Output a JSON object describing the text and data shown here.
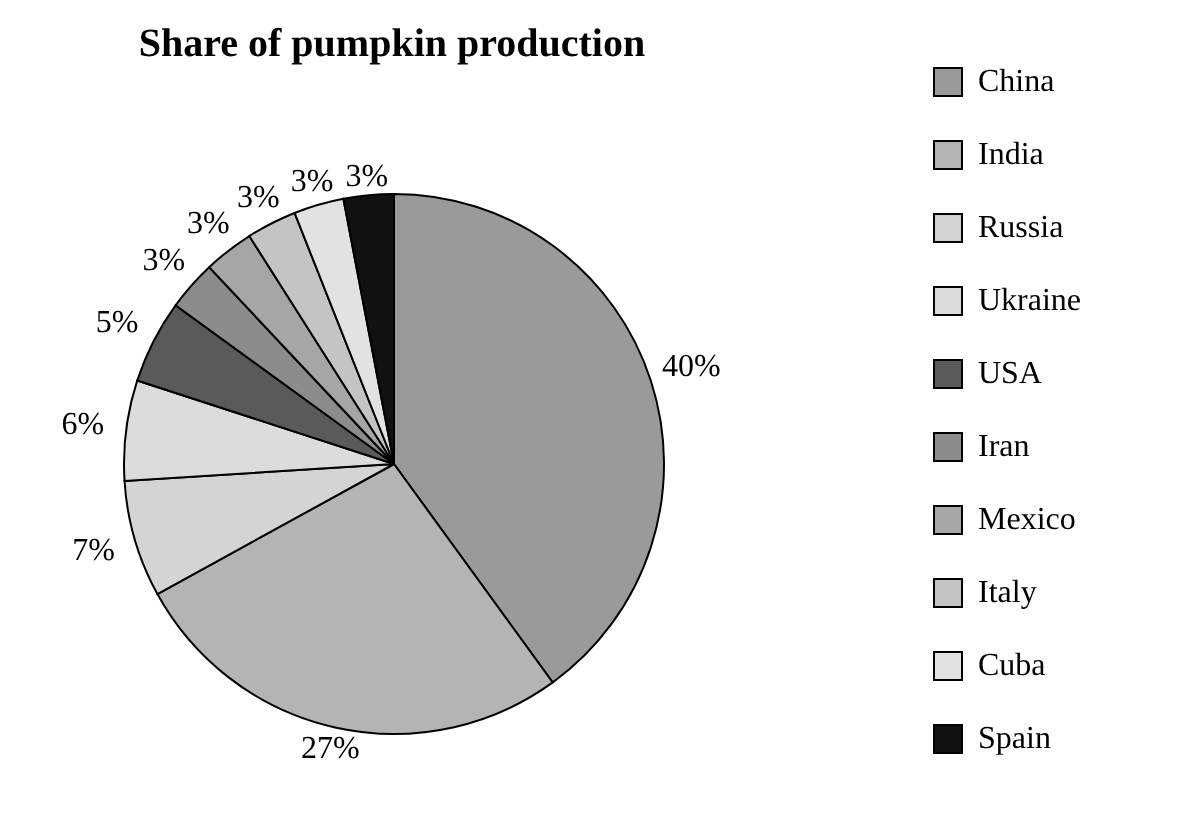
{
  "chart_data": {
    "type": "pie",
    "title": "Share of pumpkin production",
    "categories": [
      "China",
      "India",
      "Russia",
      "Ukraine",
      "USA",
      "Iran",
      "Mexico",
      "Italy",
      "Cuba",
      "Spain"
    ],
    "values": [
      40,
      27,
      7,
      6,
      5,
      3,
      3,
      3,
      3,
      3
    ],
    "colors": [
      "#9a9a9a",
      "#b4b4b4",
      "#d4d4d4",
      "#dcdcdc",
      "#5a5a5a",
      "#8c8c8c",
      "#a6a6a6",
      "#c4c4c4",
      "#e2e2e2",
      "#111111"
    ],
    "value_labels": [
      "40%",
      "27%",
      "7%",
      "6%",
      "5%",
      "3%",
      "3%",
      "3%",
      "3%",
      "3%"
    ],
    "legend": "right"
  }
}
